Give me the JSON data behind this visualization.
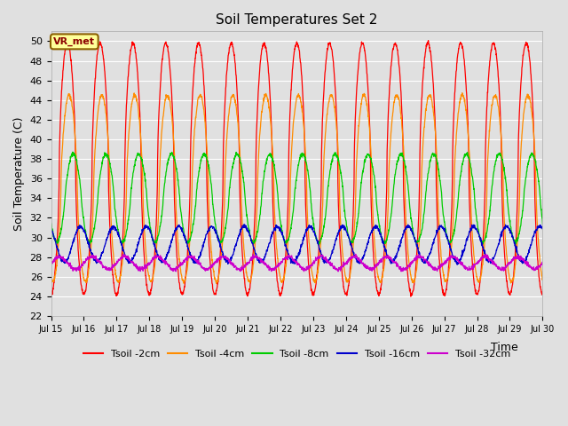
{
  "title": "Soil Temperatures Set 2",
  "xlabel": "Time",
  "ylabel": "Soil Temperature (C)",
  "ylim": [
    22,
    51
  ],
  "yticks": [
    22,
    24,
    26,
    28,
    30,
    32,
    34,
    36,
    38,
    40,
    42,
    44,
    46,
    48,
    50
  ],
  "background_color": "#e0e0e0",
  "plot_bg_color": "#e0e0e0",
  "grid_color": "#ffffff",
  "annotation_text": "VR_met",
  "annotation_color": "#8b0000",
  "annotation_bg": "#ffff99",
  "annotation_border": "#8b6000",
  "colors": [
    "#ff0000",
    "#ff8c00",
    "#00cc00",
    "#0000cc",
    "#cc00cc"
  ],
  "labels": [
    "Tsoil -2cm",
    "Tsoil -4cm",
    "Tsoil -8cm",
    "Tsoil -16cm",
    "Tsoil -32cm"
  ],
  "xtick_labels": [
    "Jul 15",
    "Jul 16",
    "Jul 17",
    "Jul 18",
    "Jul 19",
    "Jul 20",
    "Jul 21",
    "Jul 22",
    "Jul 23",
    "Jul 24",
    "Jul 25",
    "Jul 26",
    "Jul 27",
    "Jul 28",
    "Jul 29",
    "Jul 30"
  ],
  "n_days": 15,
  "figsize": [
    6.4,
    4.8
  ],
  "dpi": 100
}
